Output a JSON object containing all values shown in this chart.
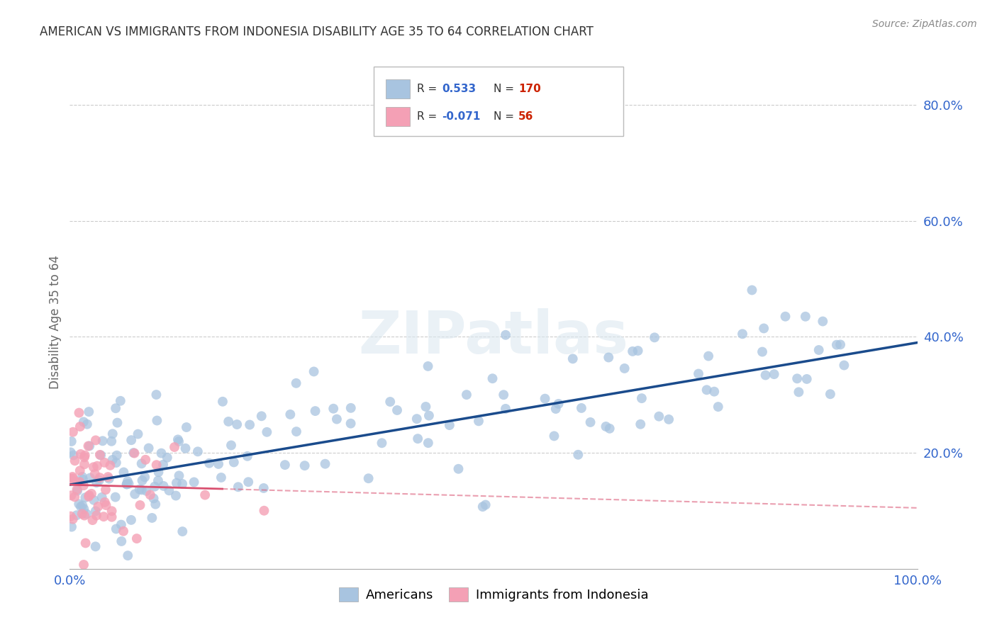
{
  "title": "AMERICAN VS IMMIGRANTS FROM INDONESIA DISABILITY AGE 35 TO 64 CORRELATION CHART",
  "source": "Source: ZipAtlas.com",
  "ylabel": "Disability Age 35 to 64",
  "xlim": [
    0.0,
    1.0
  ],
  "ylim": [
    0.0,
    0.85
  ],
  "xticks": [
    0.0,
    0.25,
    0.5,
    0.75,
    1.0
  ],
  "xtick_labels": [
    "0.0%",
    "",
    "",
    "",
    "100.0%"
  ],
  "yticks": [
    0.0,
    0.2,
    0.4,
    0.6,
    0.8
  ],
  "ytick_labels": [
    "",
    "20.0%",
    "40.0%",
    "60.0%",
    "80.0%"
  ],
  "americans_R": 0.533,
  "americans_N": 170,
  "indonesia_R": -0.071,
  "indonesia_N": 56,
  "blue_color": "#a8c4e0",
  "blue_line_color": "#1a4b8c",
  "pink_color": "#f4a0b5",
  "pink_line_color": "#d95070",
  "background_color": "#ffffff",
  "grid_color": "#cccccc",
  "title_color": "#333333",
  "axis_label_color": "#3366cc",
  "watermark_text": "ZIPatlas",
  "legend_label_blue": "Americans",
  "legend_label_pink": "Immigrants from Indonesia",
  "seed": 12345,
  "r_value_color": "#3366cc",
  "n_value_color": "#cc2200"
}
